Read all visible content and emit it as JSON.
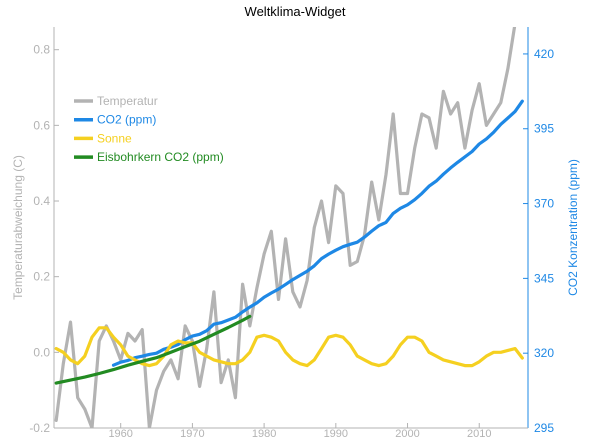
{
  "chart_data": {
    "type": "line",
    "title": "Weltklima-Widget",
    "xlabel": "",
    "ylabel": "Temperaturabweichung (C)",
    "y2label": "CO2 Konzentration (ppm)",
    "xlim": [
      1950.7,
      2016.8
    ],
    "ylim": [
      -0.2,
      0.86
    ],
    "y2lim": [
      295,
      429
    ],
    "x_ticks": [
      1960,
      1970,
      1980,
      1990,
      2000,
      2010
    ],
    "y_ticks": [
      -0.2,
      0.0,
      0.2,
      0.4,
      0.6,
      0.8
    ],
    "y_tick_labels": [
      "-0.2",
      "0.0",
      "0.2",
      "0.4",
      "0.6",
      "0.8"
    ],
    "y2_ticks": [
      295,
      320,
      345,
      370,
      395,
      420
    ],
    "grid": false,
    "legend_position": "top-left",
    "colors": {
      "temperature": "#b3b3b3",
      "co2": "#1e88e5",
      "sun": "#f5d020",
      "icecore": "#228b22",
      "left_axis": "#b3b3b3",
      "right_axis": "#1e88e5"
    },
    "series": [
      {
        "name": "Temperatur",
        "axis": "left",
        "color": "#b3b3b3",
        "x": [
          1951,
          1952,
          1953,
          1954,
          1955,
          1956,
          1957,
          1958,
          1959,
          1960,
          1961,
          1962,
          1963,
          1964,
          1965,
          1966,
          1967,
          1968,
          1969,
          1970,
          1971,
          1972,
          1973,
          1974,
          1975,
          1976,
          1977,
          1978,
          1979,
          1980,
          1981,
          1982,
          1983,
          1984,
          1985,
          1986,
          1987,
          1988,
          1989,
          1990,
          1991,
          1992,
          1993,
          1994,
          1995,
          1996,
          1997,
          1998,
          1999,
          2000,
          2001,
          2002,
          2003,
          2004,
          2005,
          2006,
          2007,
          2008,
          2009,
          2010,
          2011,
          2012,
          2013,
          2014,
          2015,
          2016
        ],
        "y": [
          -0.18,
          -0.03,
          0.08,
          -0.12,
          -0.15,
          -0.2,
          0.03,
          0.07,
          0.03,
          -0.02,
          0.05,
          0.03,
          0.06,
          -0.2,
          -0.1,
          -0.05,
          -0.02,
          -0.07,
          0.07,
          0.03,
          -0.09,
          0.01,
          0.16,
          -0.08,
          -0.02,
          -0.12,
          0.18,
          0.07,
          0.17,
          0.26,
          0.32,
          0.14,
          0.3,
          0.16,
          0.12,
          0.19,
          0.33,
          0.4,
          0.29,
          0.44,
          0.42,
          0.23,
          0.24,
          0.31,
          0.45,
          0.35,
          0.47,
          0.63,
          0.42,
          0.42,
          0.54,
          0.63,
          0.62,
          0.54,
          0.69,
          0.63,
          0.66,
          0.54,
          0.64,
          0.71,
          0.6,
          0.63,
          0.66,
          0.75,
          0.87,
          0.99
        ]
      },
      {
        "name": "CO2 (ppm)",
        "axis": "right",
        "color": "#1e88e5",
        "x": [
          1959,
          1960,
          1961,
          1962,
          1963,
          1964,
          1965,
          1966,
          1967,
          1968,
          1969,
          1970,
          1971,
          1972,
          1973,
          1974,
          1975,
          1976,
          1977,
          1978,
          1979,
          1980,
          1981,
          1982,
          1983,
          1984,
          1985,
          1986,
          1987,
          1988,
          1989,
          1990,
          1991,
          1992,
          1993,
          1994,
          1995,
          1996,
          1997,
          1998,
          1999,
          2000,
          2001,
          2002,
          2003,
          2004,
          2005,
          2006,
          2007,
          2008,
          2009,
          2010,
          2011,
          2012,
          2013,
          2014,
          2015,
          2016
        ],
        "y": [
          316,
          317,
          317.6,
          318.5,
          319,
          319.6,
          320,
          321.3,
          322,
          322.9,
          324.5,
          325.7,
          326.3,
          327.5,
          329.7,
          330.2,
          331.1,
          332,
          333.8,
          335.4,
          336.8,
          338.7,
          340.1,
          341.4,
          343,
          344.6,
          346,
          347.4,
          349.2,
          351.6,
          353.1,
          354.4,
          355.6,
          356.4,
          357.1,
          358.8,
          360.8,
          362.6,
          363.7,
          366.7,
          368.4,
          369.6,
          371.3,
          373.4,
          375.8,
          377.5,
          379.8,
          381.9,
          383.8,
          385.6,
          387.4,
          389.9,
          391.6,
          393.8,
          396.5,
          398.6,
          400.8,
          404.2
        ]
      },
      {
        "name": "Sonne",
        "axis": "left",
        "color": "#f5d020",
        "x": [
          1951,
          1952,
          1953,
          1954,
          1955,
          1956,
          1957,
          1958,
          1959,
          1960,
          1961,
          1962,
          1963,
          1964,
          1965,
          1966,
          1967,
          1968,
          1969,
          1970,
          1971,
          1972,
          1973,
          1974,
          1975,
          1976,
          1977,
          1978,
          1979,
          1980,
          1981,
          1982,
          1983,
          1984,
          1985,
          1986,
          1987,
          1988,
          1989,
          1990,
          1991,
          1992,
          1993,
          1994,
          1995,
          1996,
          1997,
          1998,
          1999,
          2000,
          2001,
          2002,
          2003,
          2004,
          2005,
          2006,
          2007,
          2008,
          2009,
          2010,
          2011,
          2012,
          2013,
          2014,
          2015,
          2016
        ],
        "y": [
          0.01,
          0.0,
          -0.02,
          -0.03,
          -0.01,
          0.04,
          0.065,
          0.065,
          0.04,
          0.02,
          -0.01,
          -0.02,
          -0.03,
          -0.035,
          -0.03,
          -0.01,
          0.02,
          0.03,
          0.025,
          0.025,
          0.0,
          -0.01,
          -0.02,
          -0.025,
          -0.03,
          -0.03,
          -0.02,
          0.0,
          0.04,
          0.045,
          0.04,
          0.03,
          0.0,
          -0.02,
          -0.03,
          -0.035,
          -0.02,
          0.01,
          0.04,
          0.045,
          0.04,
          0.02,
          -0.01,
          -0.02,
          -0.03,
          -0.035,
          -0.03,
          -0.01,
          0.02,
          0.04,
          0.04,
          0.03,
          0.0,
          -0.01,
          -0.02,
          -0.025,
          -0.03,
          -0.035,
          -0.035,
          -0.025,
          -0.01,
          0.0,
          0.0,
          0.005,
          0.01,
          -0.015
        ]
      },
      {
        "name": "Eisbohrkern CO2 (ppm)",
        "axis": "right",
        "color": "#228b22",
        "x": [
          1951,
          1953,
          1955,
          1957,
          1959,
          1961,
          1963,
          1965,
          1967,
          1969,
          1971,
          1973,
          1975,
          1977,
          1978
        ],
        "y": [
          310,
          311,
          312,
          313.2,
          314.5,
          316,
          317.3,
          318.5,
          320.3,
          322.2,
          324,
          326.3,
          328.6,
          331,
          332.3
        ]
      }
    ]
  }
}
